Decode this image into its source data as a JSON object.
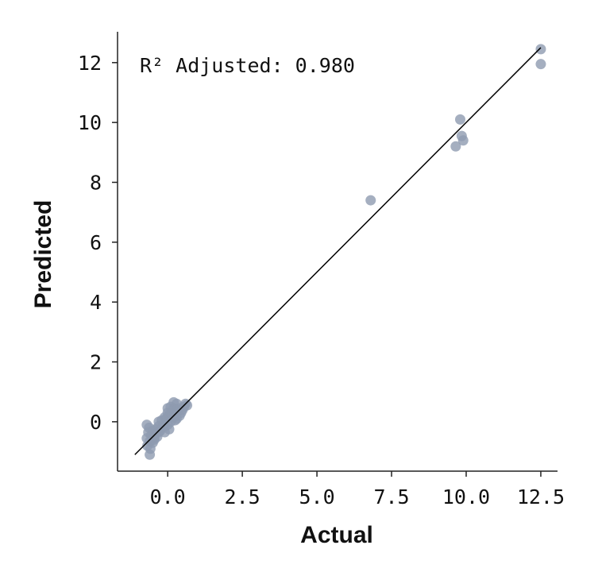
{
  "chart_data": {
    "type": "scatter",
    "x_label": "Actual",
    "y_label": "Predicted",
    "annotation": "R² Adjusted: 0.980",
    "color": "#8f9bb0",
    "xlim": [
      -1.68,
      13.06
    ],
    "ylim": [
      -1.65,
      13.03
    ],
    "xticks": [
      {
        "value": 0,
        "label": "0.0"
      },
      2.5,
      {
        "value": 5,
        "label": "5.0"
      },
      7.5,
      {
        "value": 10,
        "label": "10.0"
      },
      12.5
    ],
    "yticks": [
      0,
      2,
      4,
      6,
      8,
      10,
      12
    ],
    "reference_line": {
      "x": [
        -1.1,
        12.5
      ],
      "y": [
        -1.1,
        12.5
      ]
    },
    "x": [
      12.5,
      12.5,
      9.8,
      9.85,
      9.9,
      9.65,
      6.8,
      -0.7,
      -0.7,
      -0.68,
      -0.65,
      -0.6,
      -0.6,
      -0.55,
      -0.5,
      -0.5,
      -0.45,
      -0.42,
      -0.4,
      -0.35,
      -0.3,
      -0.3,
      -0.25,
      -0.2,
      -0.2,
      -0.15,
      -0.1,
      -0.1,
      -0.05,
      0.0,
      0.0,
      0.05,
      0.1,
      0.1,
      0.15,
      0.2,
      0.2,
      0.25,
      0.3,
      0.3,
      0.35,
      0.4,
      0.4,
      0.45,
      0.5,
      0.55,
      0.6,
      0.65,
      -0.58,
      -0.62,
      0.0,
      0.1,
      0.2,
      -0.1,
      0.3,
      -0.3,
      0.25,
      0.05,
      -0.45
    ],
    "y": [
      12.45,
      11.95,
      10.1,
      9.55,
      9.4,
      9.2,
      7.4,
      -0.1,
      -0.55,
      -0.8,
      -0.35,
      -1.1,
      -0.65,
      -0.45,
      -0.7,
      -0.3,
      -0.55,
      -0.4,
      -0.25,
      -0.5,
      -0.15,
      -0.35,
      -0.3,
      0.05,
      -0.2,
      -0.1,
      0.15,
      -0.15,
      0.1,
      0.3,
      -0.1,
      0.2,
      0.5,
      0.0,
      0.2,
      0.45,
      0.15,
      0.3,
      0.6,
      0.1,
      0.35,
      0.45,
      0.2,
      0.3,
      0.4,
      0.5,
      0.6,
      0.55,
      -0.9,
      -0.2,
      0.45,
      0.3,
      0.65,
      -0.35,
      0.4,
      0.0,
      0.05,
      -0.25,
      -0.6
    ]
  }
}
